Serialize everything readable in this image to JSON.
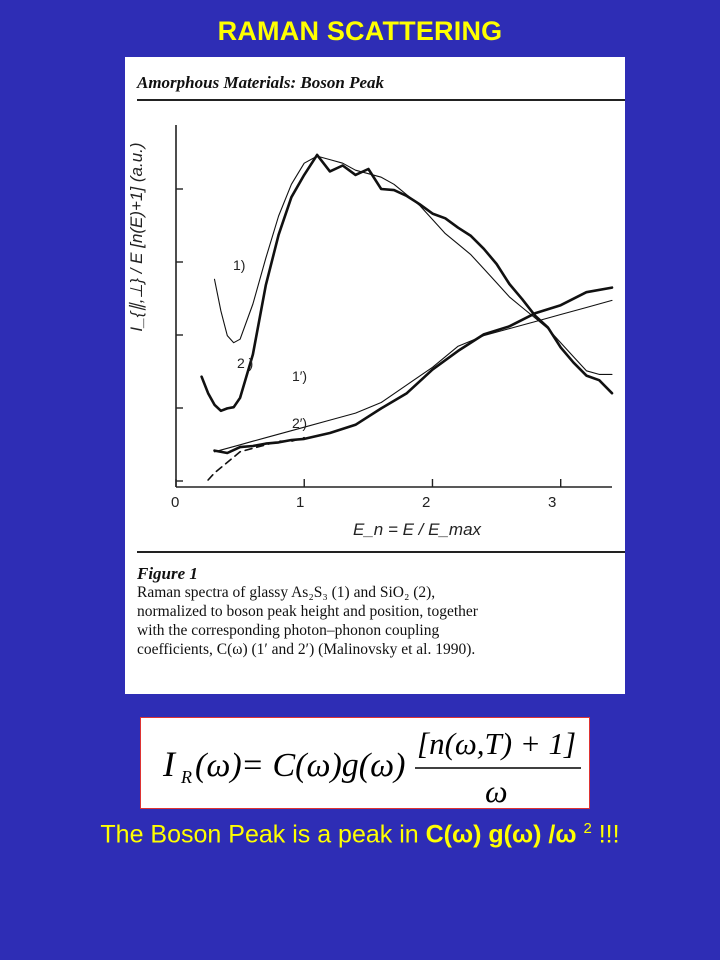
{
  "slide": {
    "title": "RAMAN SCATTERING"
  },
  "figure": {
    "header": "Amorphous Materials: Boson Peak",
    "y_axis_label": "I_{∥,⊥} / E [n(E)+1]  (a.u.)",
    "x_axis_label": "E_n = E / E_max",
    "x_ticks": [
      "0",
      "1",
      "2",
      "3"
    ],
    "curve_labels": [
      "1)",
      "2 )",
      "1′)",
      "2′)"
    ],
    "caption_title": "Figure 1",
    "caption_lines": [
      "Raman spectra of glassy As₂S₃ (1) and SiO₂ (2),",
      "normalized to boson peak height and position, together",
      "with the corresponding photon–phonon coupling",
      "coefficients, C(ω) (1′ and 2′) (Malinovsky et al. 1990)."
    ]
  },
  "formula": {
    "lhs": "I",
    "lhs_sub": "R",
    "lhs_arg": "(ω)",
    "rhs_terms": "= C(ω)g(ω)",
    "numerator": "[n(ω,T) + 1]",
    "denominator": "ω"
  },
  "conclusion": {
    "prefix": "The Boson Peak is a peak in ",
    "expr_c": "C(",
    "omega": "ω",
    "expr_close": ")",
    "expr_g": " g(",
    "slash": " /",
    "power": "2",
    "suffix": " !!!"
  },
  "colors": {
    "background": "#2e2db5",
    "title_text": "#ffff00",
    "formula_border": "#dd3333"
  },
  "chart_data": {
    "type": "line",
    "xlabel": "E_n = E / E_max",
    "ylabel": "I_{∥,⊥} / E [n(E)+1] (a.u.)",
    "xlim": [
      0,
      3.4
    ],
    "x_ticks": [
      0,
      1,
      2,
      3
    ],
    "series": [
      {
        "name": "1)",
        "style": "thin",
        "x": [
          0.3,
          0.35,
          0.4,
          0.45,
          0.5,
          0.6,
          0.7,
          0.8,
          0.9,
          1.0,
          1.1,
          1.2,
          1.3,
          1.4,
          1.5,
          1.6,
          1.7,
          1.8,
          1.9,
          2.0,
          2.1,
          2.2,
          2.3,
          2.4,
          2.5,
          2.6,
          2.7,
          2.8,
          2.9,
          3.0,
          3.1,
          3.2,
          3.3,
          3.4
        ],
        "y": [
          0.49,
          0.4,
          0.33,
          0.31,
          0.32,
          0.42,
          0.55,
          0.67,
          0.76,
          0.82,
          0.84,
          0.83,
          0.82,
          0.8,
          0.79,
          0.78,
          0.76,
          0.73,
          0.7,
          0.66,
          0.62,
          0.59,
          0.56,
          0.52,
          0.48,
          0.44,
          0.41,
          0.38,
          0.35,
          0.31,
          0.27,
          0.23,
          0.22,
          0.22
        ]
      },
      {
        "name": "2 )",
        "style": "thick",
        "x": [
          0.2,
          0.25,
          0.3,
          0.35,
          0.4,
          0.45,
          0.5,
          0.6,
          0.7,
          0.8,
          0.9,
          1.0,
          1.1,
          1.2,
          1.3,
          1.4,
          1.5,
          1.6,
          1.7,
          1.8,
          1.9,
          2.0,
          2.1,
          2.2,
          2.3,
          2.4,
          2.5,
          2.6,
          2.7,
          2.8,
          2.9,
          3.0,
          3.1,
          3.2,
          3.3,
          3.4
        ],
        "y": [
          0.21,
          0.17,
          0.13,
          0.12,
          0.12,
          0.13,
          0.15,
          0.28,
          0.47,
          0.62,
          0.72,
          0.79,
          0.84,
          0.8,
          0.81,
          0.79,
          0.8,
          0.75,
          0.74,
          0.73,
          0.7,
          0.68,
          0.66,
          0.64,
          0.61,
          0.58,
          0.53,
          0.48,
          0.43,
          0.39,
          0.35,
          0.3,
          0.25,
          0.22,
          0.2,
          0.17
        ]
      },
      {
        "name": "1′)",
        "style": "thin",
        "x": [
          0.3,
          0.4,
          0.5,
          0.6,
          0.7,
          0.8,
          0.9,
          1.0,
          1.2,
          1.4,
          1.6,
          1.8,
          2.0,
          2.2,
          2.4,
          2.6,
          2.8,
          3.0,
          3.2,
          3.4
        ],
        "y": [
          0.0,
          0.01,
          0.02,
          0.03,
          0.04,
          0.05,
          0.06,
          0.07,
          0.09,
          0.11,
          0.14,
          0.19,
          0.24,
          0.3,
          0.33,
          0.35,
          0.37,
          0.39,
          0.41,
          0.43
        ]
      },
      {
        "name": "2′)",
        "style": "thick",
        "x": [
          0.3,
          0.4,
          0.5,
          0.6,
          0.7,
          0.8,
          0.9,
          1.0,
          1.2,
          1.4,
          1.6,
          1.8,
          2.0,
          2.2,
          2.4,
          2.6,
          2.8,
          3.0,
          3.2,
          3.4
        ],
        "y": [
          0.0,
          0.0,
          0.01,
          0.02,
          0.02,
          0.03,
          0.03,
          0.04,
          0.05,
          0.08,
          0.12,
          0.17,
          0.23,
          0.29,
          0.33,
          0.36,
          0.39,
          0.42,
          0.45,
          0.47
        ]
      },
      {
        "name": "",
        "style": "dashed",
        "x": [
          0.25,
          0.3,
          0.4,
          0.5,
          0.6,
          0.7,
          0.8,
          0.9,
          1.0
        ],
        "y": [
          -0.08,
          -0.06,
          -0.03,
          0.0,
          0.01,
          0.02,
          0.03,
          0.03,
          0.04
        ]
      }
    ]
  }
}
